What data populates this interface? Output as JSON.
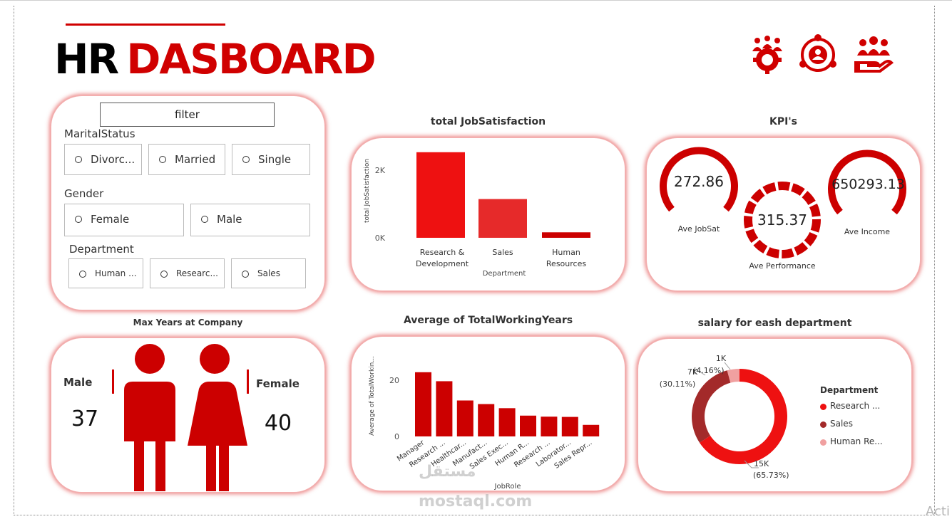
{
  "title": {
    "part1": "HR",
    "part2": "DASBOARD"
  },
  "header_icons": [
    "team-gear-icon",
    "people-network-icon",
    "hand-care-icon"
  ],
  "filter": {
    "title": "filter",
    "marital_label": "MaritalStatus",
    "marital_options": [
      "Divorc...",
      "Married",
      "Single"
    ],
    "gender_label": "Gender",
    "gender_options": [
      "Female",
      "Male"
    ],
    "department_label": "Department",
    "department_options": [
      "Human ...",
      "Researc...",
      "Sales"
    ]
  },
  "job_satisfaction": {
    "title": "total JobSatisfaction",
    "ylabel": "total JobSatisfaction",
    "xlabel": "Department",
    "yticks": [
      "2K",
      "0K"
    ],
    "categories": [
      "Research & Development",
      "Sales",
      "Human Resources"
    ],
    "category_lines": [
      [
        "Research &",
        "Development"
      ],
      [
        "Sales"
      ],
      [
        "Human",
        "Resources"
      ]
    ]
  },
  "kpis": {
    "title": "KPI's",
    "items": [
      {
        "value": "272.86",
        "label": "Ave JobSat"
      },
      {
        "value": "315.37",
        "label": "Ave Performance"
      },
      {
        "value": "650293.13",
        "label": "Ave Income"
      }
    ]
  },
  "max_years": {
    "title": "Max Years at Company",
    "male_label": "Male",
    "male_value": "37",
    "female_label": "Female",
    "female_value": "40"
  },
  "working_years": {
    "title": "Average of TotalWorkingYears",
    "ylabel": "Average of TotalWorkin...",
    "xlabel": "JobRole",
    "yticks": [
      "20",
      "0"
    ],
    "categories": [
      "Manager",
      "Research ...",
      "Healthcar...",
      "Manufact...",
      "Sales Exec...",
      "Human R...",
      "Research ...",
      "Laborator...",
      "Sales Repr..."
    ]
  },
  "salary": {
    "title": "salary for eash department",
    "legend_title": "Department",
    "labels": [
      {
        "top": "15K",
        "bottom": "(65.73%)"
      },
      {
        "top": "7K",
        "bottom": "(30.11%)"
      },
      {
        "top": "1K",
        "bottom": "(4.16%)"
      }
    ],
    "legend": [
      "Research ...",
      "Sales",
      "Human Re..."
    ]
  },
  "watermark": {
    "arabic": "مستقل",
    "latin": "mostaql.com"
  },
  "corner_text": "Acti",
  "colors": {
    "accent": "#d00000",
    "bar": "#ee1111",
    "sales_dark": "#a32a2a",
    "hr_light": "#f0a0a0"
  },
  "chart_data": [
    {
      "type": "bar",
      "title": "total JobSatisfaction",
      "xlabel": "Department",
      "ylabel": "total JobSatisfaction",
      "categories": [
        "Research & Development",
        "Sales",
        "Human Resources"
      ],
      "values": [
        2650,
        1200,
        170
      ],
      "ylim": [
        0,
        2800
      ]
    },
    {
      "type": "bar",
      "title": "Average of TotalWorkingYears",
      "xlabel": "JobRole",
      "ylabel": "Average of TotalWorkin...",
      "categories": [
        "Manager",
        "Research ...",
        "Healthcar...",
        "Manufact...",
        "Sales Exec...",
        "Human R...",
        "Research ...",
        "Laborator...",
        "Sales Repr..."
      ],
      "values": [
        25,
        21.5,
        14,
        12.6,
        11,
        8.1,
        7.7,
        7.6,
        4.5
      ],
      "ylim": [
        0,
        28
      ]
    },
    {
      "type": "pie",
      "title": "salary for eash department",
      "categories": [
        "Research ...",
        "Sales",
        "Human Re..."
      ],
      "values": [
        65.73,
        30.11,
        4.16
      ]
    }
  ]
}
